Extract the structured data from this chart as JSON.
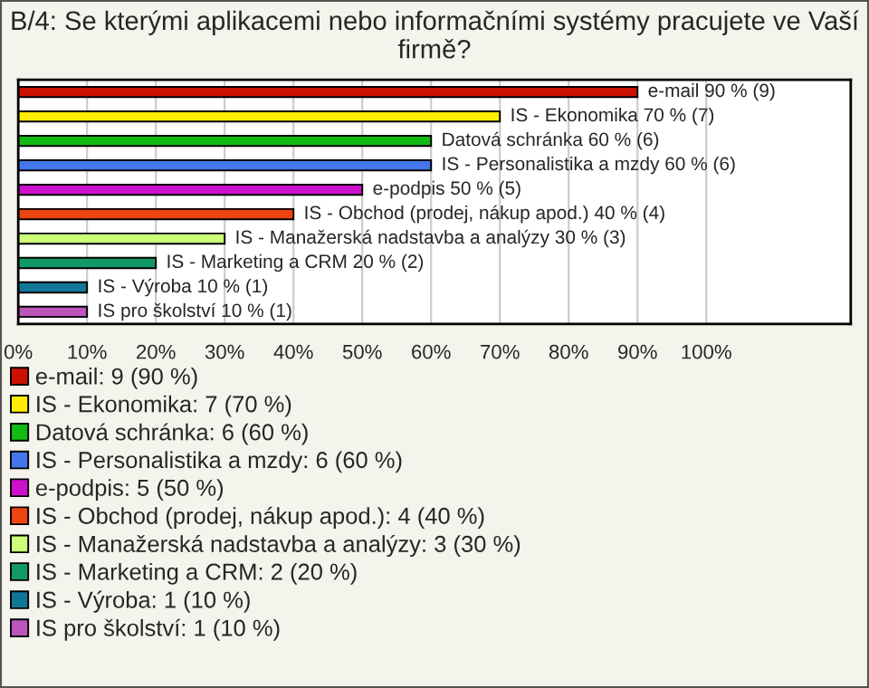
{
  "chart_data": {
    "type": "bar",
    "orientation": "horizontal",
    "title": "B/4: Se kterými aplikacemi nebo informačními systémy pracujete ve Vaší firmě?",
    "categories": [
      null,
      null,
      null,
      null,
      null,
      null,
      null,
      null,
      null,
      null
    ],
    "series": [
      {
        "name": "e-mail: 9 (90 %)",
        "color": "#cc1100",
        "values": [
          90,
          null,
          null,
          null,
          null,
          null,
          null,
          null,
          null,
          null
        ],
        "value_labels": [
          "e-mail 90 % (9)",
          null,
          null,
          null,
          null,
          null,
          null,
          null,
          null,
          null
        ]
      },
      {
        "name": "IS - Ekonomika: 7 (70 %)",
        "color": "#ffee00",
        "values": [
          null,
          70,
          null,
          null,
          null,
          null,
          null,
          null,
          null,
          null
        ],
        "value_labels": [
          null,
          "IS - Ekonomika 70 % (7)",
          null,
          null,
          null,
          null,
          null,
          null,
          null,
          null
        ]
      },
      {
        "name": "Datová schránka: 6 (60 %)",
        "color": "#11bb11",
        "values": [
          null,
          null,
          60,
          null,
          null,
          null,
          null,
          null,
          null,
          null
        ],
        "value_labels": [
          null,
          null,
          "Datová schránka 60 % (6)",
          null,
          null,
          null,
          null,
          null,
          null,
          null
        ]
      },
      {
        "name": "IS - Personalistika a mzdy: 6 (60 %)",
        "color": "#4477ee",
        "values": [
          null,
          null,
          null,
          60,
          null,
          null,
          null,
          null,
          null,
          null
        ],
        "value_labels": [
          null,
          null,
          null,
          "IS - Personalistika a mzdy 60 % (6)",
          null,
          null,
          null,
          null,
          null,
          null
        ]
      },
      {
        "name": "e-podpis: 5 (50 %)",
        "color": "#cc11cc",
        "values": [
          null,
          null,
          null,
          null,
          50,
          null,
          null,
          null,
          null,
          null
        ],
        "value_labels": [
          null,
          null,
          null,
          null,
          "e-podpis 50 % (5)",
          null,
          null,
          null,
          null,
          null
        ]
      },
      {
        "name": "IS - Obchod (prodej, nákup apod.): 4 (40 %)",
        "color": "#ee4411",
        "values": [
          null,
          null,
          null,
          null,
          null,
          40,
          null,
          null,
          null,
          null
        ],
        "value_labels": [
          null,
          null,
          null,
          null,
          null,
          "IS - Obchod (prodej, nákup apod.) 40 % (4)",
          null,
          null,
          null,
          null
        ]
      },
      {
        "name": "IS - Manažerská nadstavba a analýzy: 3 (30 %)",
        "color": "#ccff77",
        "values": [
          null,
          null,
          null,
          null,
          null,
          null,
          30,
          null,
          null,
          null
        ],
        "value_labels": [
          null,
          null,
          null,
          null,
          null,
          null,
          "IS - Manažerská nadstavba a analýzy 30 % (3)",
          null,
          null,
          null
        ]
      },
      {
        "name": "IS - Marketing a CRM: 2 (20 %)",
        "color": "#119966",
        "values": [
          null,
          null,
          null,
          null,
          null,
          null,
          null,
          20,
          null,
          null
        ],
        "value_labels": [
          null,
          null,
          null,
          null,
          null,
          null,
          null,
          "IS - Marketing a CRM 20 % (2)",
          null,
          null
        ]
      },
      {
        "name": "IS - Výroba: 1 (10 %)",
        "color": "#117799",
        "values": [
          null,
          null,
          null,
          null,
          null,
          null,
          null,
          null,
          10,
          null
        ],
        "value_labels": [
          null,
          null,
          null,
          null,
          null,
          null,
          null,
          null,
          "IS - Výroba 10 % (1)",
          null
        ]
      },
      {
        "name": "IS pro školství: 1 (10 %)",
        "color": "#bb55bb",
        "values": [
          null,
          null,
          null,
          null,
          null,
          null,
          null,
          null,
          null,
          10
        ],
        "value_labels": [
          null,
          null,
          null,
          null,
          null,
          null,
          null,
          null,
          null,
          "IS pro školství 10 % (1)"
        ]
      }
    ],
    "xlim": [
      0,
      121
    ],
    "xticks": [
      {
        "value": 0,
        "label": "0%"
      },
      {
        "value": 10,
        "label": "10%"
      },
      {
        "value": 20,
        "label": "20%"
      },
      {
        "value": 30,
        "label": "30%"
      },
      {
        "value": 40,
        "label": "40%"
      },
      {
        "value": 50,
        "label": "50%"
      },
      {
        "value": 60,
        "label": "60%"
      },
      {
        "value": 70,
        "label": "70%"
      },
      {
        "value": 80,
        "label": "80%"
      },
      {
        "value": 90,
        "label": "90%"
      },
      {
        "value": 100,
        "label": "100%"
      }
    ],
    "grid": "x",
    "legend": "bottom"
  }
}
